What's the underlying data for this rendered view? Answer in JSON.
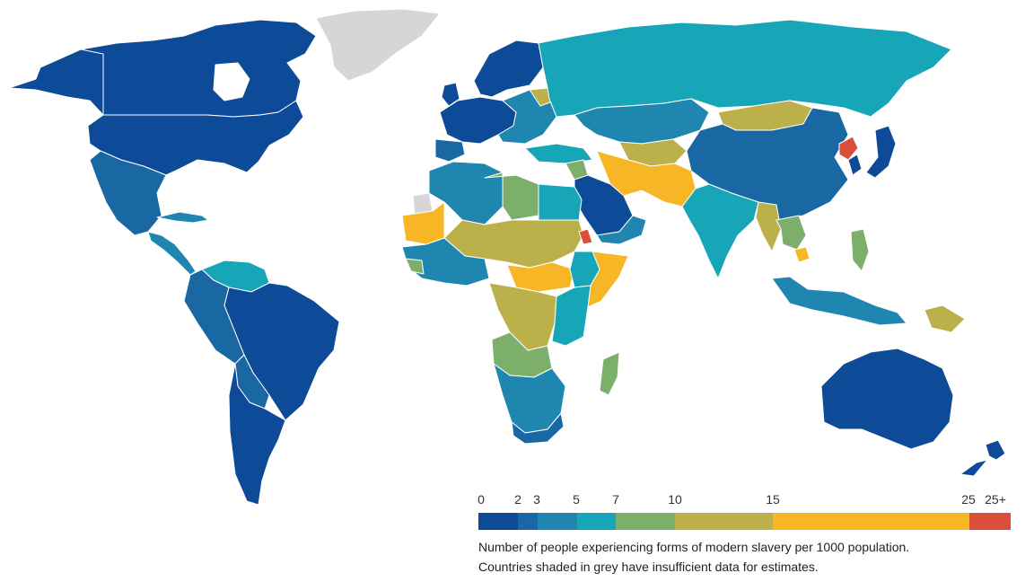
{
  "legend": {
    "ticks": [
      "0",
      "2",
      "3",
      "5",
      "7",
      "10",
      "15",
      "25",
      "25+"
    ],
    "bins": [
      {
        "from": 0,
        "to": 2,
        "color": "#0d4a98"
      },
      {
        "from": 2,
        "to": 3,
        "color": "#1a68a3"
      },
      {
        "from": 3,
        "to": 5,
        "color": "#1f86b0"
      },
      {
        "from": 5,
        "to": 7,
        "color": "#16a6b8"
      },
      {
        "from": 7,
        "to": 10,
        "color": "#7cb06a"
      },
      {
        "from": 10,
        "to": 15,
        "color": "#bcb04a"
      },
      {
        "from": 15,
        "to": 25,
        "color": "#f6b625"
      },
      {
        "from": 25,
        "to": null,
        "color": "#d94f3a"
      }
    ],
    "caption_line1": "Number of people experiencing forms of modern slavery per 1000 population.",
    "caption_line2": "Countries shaded in grey have insufficient data for estimates."
  },
  "colors": {
    "no_data": "#d6d6d8",
    "border": "#ffffff",
    "ocean": "#ffffff"
  }
}
